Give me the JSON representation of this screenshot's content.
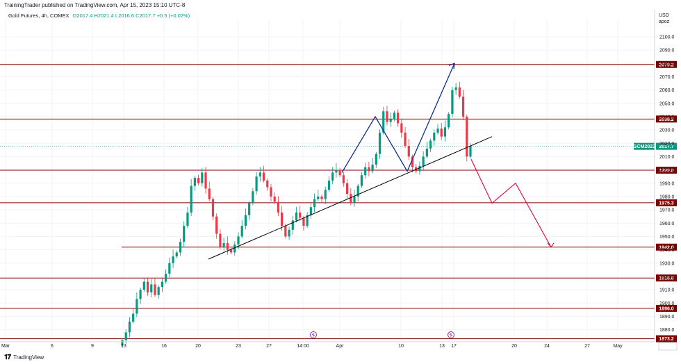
{
  "header": {
    "published": "TrainingTrader published on TradingView.com, Apr 15, 2023 15:10 UTC-8",
    "symbol": "Gold Futures, 4h, COMEX",
    "ohlc": "O2017.4  H2021.4  L2016.6  C2017.7  +0.5 (+0.02%)",
    "currency": "USD",
    "unit": "apoz"
  },
  "footer": {
    "brand": "TradingView",
    "logo": "tradingview-logo-icon"
  },
  "colors": {
    "up": "#089981",
    "down": "#f23645",
    "level": "#800000",
    "trend": "#000000",
    "pattern": "#0d2f8a",
    "projection": "#e0003a"
  },
  "chart_data": {
    "type": "candlestick",
    "interval": "4h",
    "x_ticks": [
      "Mar",
      "6",
      "9",
      "13",
      "16",
      "20",
      "23",
      "27",
      "14:00",
      "Apr",
      "10",
      "13",
      "17",
      "20",
      "24",
      "27",
      "May"
    ],
    "y_ticks": [
      1880,
      1890,
      1900,
      1910,
      1920,
      1930,
      1940,
      1950,
      1960,
      1970,
      1980,
      1990,
      2000,
      2010,
      2020,
      2030,
      2040,
      2050,
      2060,
      2070,
      2080,
      2090,
      2100
    ],
    "ylim": [
      1873,
      2113
    ],
    "horizontal_levels": [
      "2079.2",
      "2038.2",
      "1999.8",
      "1975.3",
      "1942.0",
      "1918.8",
      "1896.0",
      "1873.2"
    ],
    "current_price": {
      "symbol": "GCM2023",
      "value": "2017.7"
    },
    "close_series": [
      1872,
      1878,
      1886,
      1892,
      1903,
      1910,
      1916,
      1908,
      1914,
      1906,
      1912,
      1916,
      1922,
      1930,
      1935,
      1938,
      1946,
      1958,
      1968,
      1988,
      1994,
      1990,
      1998,
      1986,
      1978,
      1965,
      1952,
      1942,
      1945,
      1940,
      1938,
      1944,
      1950,
      1958,
      1966,
      1975,
      1984,
      1995,
      1998,
      1992,
      1987,
      1980,
      1976,
      1968,
      1958,
      1950,
      1955,
      1962,
      1968,
      1964,
      1958,
      1966,
      1972,
      1978,
      1980,
      1978,
      1985,
      1992,
      1998,
      2000,
      1996,
      1990,
      1982,
      1975,
      1980,
      1988,
      1996,
      2002,
      1999,
      2004,
      2012,
      2028,
      2044,
      2036,
      2038,
      2043,
      2035,
      2028,
      2018,
      2010,
      2002,
      1999,
      2003,
      2010,
      2016,
      2022,
      2028,
      2031,
      2025,
      2032,
      2042,
      2060,
      2062,
      2055,
      2040,
      2010,
      2017.7
    ],
    "trendline": [
      {
        "date": "Mar 21",
        "value": 1933
      },
      {
        "date": "Apr 18",
        "value": 2025
      }
    ],
    "pattern_path": [
      {
        "date": "Mar 31",
        "value": 1998
      },
      {
        "date": "Apr 6",
        "value": 2040
      },
      {
        "date": "Apr 10",
        "value": 1999
      },
      {
        "date": "Apr 14",
        "value": 2080
      }
    ],
    "projection_path": [
      {
        "date": "Apr 16",
        "value": 2008
      },
      {
        "date": "Apr 18",
        "value": 1975
      },
      {
        "date": "Apr 22",
        "value": 1990
      },
      {
        "date": "Apr 25",
        "value": 1942
      }
    ]
  }
}
